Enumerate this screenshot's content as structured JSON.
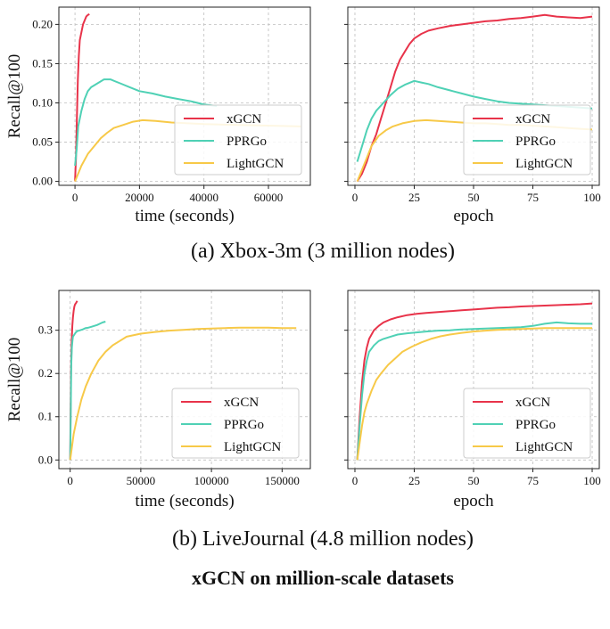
{
  "figure_title": "xGCN on million-scale datasets",
  "captions": [
    "(a) Xbox-3m (3 million nodes)",
    "(b) LiveJournal (4.8 million nodes)"
  ],
  "colors": {
    "xGCN": "#e8334a",
    "PPRGo": "#4fd1b5",
    "LightGCN": "#f7c948"
  },
  "legend_labels": [
    "xGCN",
    "PPRGo",
    "LightGCN"
  ],
  "chart_data": [
    {
      "type": "line",
      "ylabel": "Recall@100",
      "xlabel": "time (seconds)",
      "xlim": [
        -5000,
        73000
      ],
      "ylim": [
        -0.005,
        0.222
      ],
      "xticks": [
        0,
        20000,
        40000,
        60000
      ],
      "yticks": [
        0.0,
        0.05,
        0.1,
        0.15,
        0.2
      ],
      "ytick_labels": [
        "0.00",
        "0.05",
        "0.10",
        "0.15",
        "0.20"
      ],
      "grid": true,
      "legend_position": "lower-right",
      "series": [
        {
          "name": "xGCN",
          "x": [
            0,
            300,
            600,
            900,
            1200,
            1500,
            2000,
            2500,
            3000,
            3500,
            4000,
            4500
          ],
          "y": [
            0.0,
            0.03,
            0.08,
            0.13,
            0.16,
            0.18,
            0.19,
            0.2,
            0.205,
            0.21,
            0.212,
            0.213
          ]
        },
        {
          "name": "PPRGo",
          "x": [
            0,
            500,
            1000,
            2000,
            3000,
            4000,
            5000,
            7000,
            9000,
            11000,
            14000,
            17000,
            20000,
            24000,
            28000,
            32000,
            36000,
            38000,
            40000,
            42000,
            44000
          ],
          "y": [
            0.02,
            0.04,
            0.07,
            0.09,
            0.105,
            0.115,
            0.12,
            0.125,
            0.13,
            0.13,
            0.125,
            0.12,
            0.115,
            0.112,
            0.108,
            0.105,
            0.102,
            0.1,
            0.098,
            0.097,
            0.096
          ]
        },
        {
          "name": "LightGCN",
          "x": [
            0,
            2000,
            4000,
            6000,
            8000,
            10000,
            12000,
            15000,
            18000,
            21000,
            25000,
            30000,
            35000,
            40000,
            50000,
            60000,
            70000
          ],
          "y": [
            0.0,
            0.02,
            0.035,
            0.045,
            0.055,
            0.062,
            0.068,
            0.072,
            0.076,
            0.078,
            0.077,
            0.075,
            0.074,
            0.073,
            0.072,
            0.071,
            0.07
          ]
        }
      ]
    },
    {
      "type": "line",
      "ylabel": "",
      "xlabel": "epoch",
      "xlim": [
        -3,
        103
      ],
      "ylim": [
        -0.005,
        0.222
      ],
      "xticks": [
        0,
        25,
        50,
        75,
        100
      ],
      "yticks": [
        0.0,
        0.05,
        0.1,
        0.15,
        0.2
      ],
      "grid": true,
      "legend_position": "lower-right",
      "series": [
        {
          "name": "xGCN",
          "x": [
            1,
            3,
            5,
            7,
            9,
            11,
            13,
            15,
            17,
            19,
            21,
            23,
            25,
            28,
            31,
            35,
            40,
            45,
            50,
            55,
            60,
            65,
            70,
            75,
            80,
            85,
            90,
            95,
            100
          ],
          "y": [
            0.0,
            0.01,
            0.025,
            0.045,
            0.06,
            0.08,
            0.1,
            0.12,
            0.14,
            0.155,
            0.165,
            0.175,
            0.182,
            0.188,
            0.192,
            0.195,
            0.198,
            0.2,
            0.202,
            0.204,
            0.205,
            0.207,
            0.208,
            0.21,
            0.212,
            0.21,
            0.209,
            0.208,
            0.21
          ]
        },
        {
          "name": "PPRGo",
          "x": [
            1,
            3,
            5,
            7,
            9,
            12,
            15,
            18,
            21,
            25,
            28,
            31,
            35,
            40,
            45,
            50,
            55,
            60,
            65,
            70,
            75,
            80,
            85,
            90,
            95,
            100
          ],
          "y": [
            0.025,
            0.045,
            0.065,
            0.08,
            0.09,
            0.1,
            0.11,
            0.118,
            0.123,
            0.128,
            0.126,
            0.124,
            0.12,
            0.116,
            0.112,
            0.108,
            0.105,
            0.102,
            0.1,
            0.099,
            0.098,
            0.097,
            0.096,
            0.095,
            0.094,
            0.093
          ]
        },
        {
          "name": "LightGCN",
          "x": [
            1,
            3,
            5,
            7,
            10,
            13,
            16,
            20,
            25,
            30,
            35,
            40,
            45,
            50,
            55,
            60,
            65,
            70,
            75,
            80,
            85,
            90,
            95,
            100
          ],
          "y": [
            0.0,
            0.015,
            0.03,
            0.045,
            0.058,
            0.065,
            0.07,
            0.074,
            0.077,
            0.078,
            0.077,
            0.076,
            0.075,
            0.074,
            0.074,
            0.073,
            0.072,
            0.072,
            0.071,
            0.07,
            0.069,
            0.068,
            0.067,
            0.066
          ]
        }
      ]
    },
    {
      "type": "line",
      "ylabel": "Recall@100",
      "xlabel": "time (seconds)",
      "xlim": [
        -8000,
        170000
      ],
      "ylim": [
        -0.02,
        0.392
      ],
      "xticks": [
        0,
        50000,
        100000,
        150000
      ],
      "yticks": [
        0.0,
        0.1,
        0.2,
        0.3
      ],
      "ytick_labels": [
        "0.0",
        "0.1",
        "0.2",
        "0.3"
      ],
      "grid": true,
      "legend_position": "lower-right",
      "series": [
        {
          "name": "xGCN",
          "x": [
            0,
            300,
            600,
            1000,
            1500,
            2000,
            2500,
            3000,
            3500,
            4000,
            4500,
            5000
          ],
          "y": [
            0.0,
            0.1,
            0.2,
            0.27,
            0.31,
            0.33,
            0.345,
            0.355,
            0.36,
            0.362,
            0.365,
            0.368
          ]
        },
        {
          "name": "PPRGo",
          "x": [
            0,
            400,
            800,
            1200,
            1600,
            2000,
            3000,
            4000,
            5000,
            7000,
            9000,
            11000,
            13000,
            15000,
            17000,
            19000,
            21000,
            23000,
            25000
          ],
          "y": [
            0.0,
            0.1,
            0.22,
            0.26,
            0.275,
            0.285,
            0.29,
            0.295,
            0.298,
            0.3,
            0.302,
            0.305,
            0.306,
            0.308,
            0.31,
            0.312,
            0.315,
            0.318,
            0.32
          ]
        },
        {
          "name": "LightGCN",
          "x": [
            0,
            2500,
            5000,
            8000,
            11000,
            15000,
            20000,
            25000,
            30000,
            35000,
            40000,
            50000,
            60000,
            70000,
            80000,
            90000,
            100000,
            110000,
            120000,
            130000,
            140000,
            150000,
            160000
          ],
          "y": [
            0.0,
            0.06,
            0.1,
            0.14,
            0.17,
            0.2,
            0.23,
            0.25,
            0.265,
            0.275,
            0.285,
            0.292,
            0.296,
            0.299,
            0.301,
            0.303,
            0.304,
            0.305,
            0.306,
            0.306,
            0.306,
            0.305,
            0.305
          ]
        }
      ]
    },
    {
      "type": "line",
      "ylabel": "",
      "xlabel": "epoch",
      "xlim": [
        -3,
        103
      ],
      "ylim": [
        -0.02,
        0.392
      ],
      "xticks": [
        0,
        25,
        50,
        75,
        100
      ],
      "yticks": [
        0.0,
        0.1,
        0.2,
        0.3
      ],
      "grid": true,
      "legend_position": "lower-right",
      "series": [
        {
          "name": "xGCN",
          "x": [
            1,
            2,
            3,
            4,
            5,
            6,
            8,
            10,
            12,
            15,
            18,
            22,
            26,
            30,
            35,
            40,
            45,
            50,
            55,
            60,
            65,
            70,
            75,
            80,
            85,
            90,
            95,
            100
          ],
          "y": [
            0.0,
            0.1,
            0.18,
            0.23,
            0.26,
            0.28,
            0.3,
            0.31,
            0.318,
            0.325,
            0.33,
            0.335,
            0.338,
            0.34,
            0.342,
            0.344,
            0.346,
            0.348,
            0.35,
            0.352,
            0.353,
            0.355,
            0.356,
            0.357,
            0.358,
            0.359,
            0.36,
            0.362
          ]
        },
        {
          "name": "PPRGo",
          "x": [
            1,
            2,
            3,
            4,
            5,
            6,
            8,
            10,
            12,
            15,
            18,
            22,
            26,
            30,
            35,
            40,
            45,
            50,
            55,
            60,
            65,
            70,
            75,
            80,
            85,
            90,
            95,
            100
          ],
          "y": [
            0.0,
            0.08,
            0.15,
            0.2,
            0.23,
            0.25,
            0.265,
            0.275,
            0.28,
            0.285,
            0.29,
            0.293,
            0.295,
            0.297,
            0.299,
            0.3,
            0.302,
            0.303,
            0.304,
            0.305,
            0.306,
            0.307,
            0.31,
            0.315,
            0.318,
            0.316,
            0.315,
            0.315
          ]
        },
        {
          "name": "LightGCN",
          "x": [
            1,
            2,
            3,
            4,
            5,
            7,
            9,
            11,
            14,
            17,
            20,
            24,
            28,
            32,
            36,
            40,
            45,
            50,
            55,
            60,
            65,
            70,
            75,
            80,
            85,
            90,
            95,
            100
          ],
          "y": [
            0.0,
            0.04,
            0.08,
            0.11,
            0.13,
            0.16,
            0.185,
            0.2,
            0.22,
            0.235,
            0.25,
            0.262,
            0.272,
            0.28,
            0.286,
            0.29,
            0.294,
            0.297,
            0.299,
            0.301,
            0.302,
            0.303,
            0.304,
            0.305,
            0.305,
            0.305,
            0.305,
            0.305
          ]
        }
      ]
    }
  ]
}
